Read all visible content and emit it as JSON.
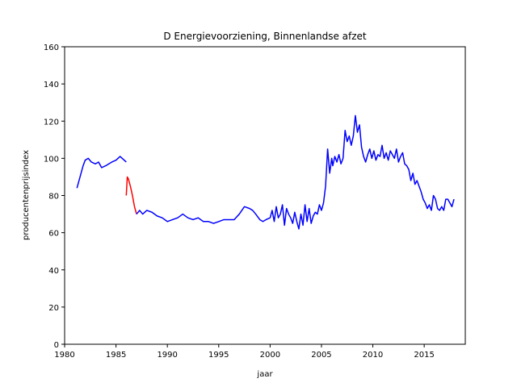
{
  "chart_data": {
    "type": "line",
    "title": "D Energievoorziening, Binnenlandse afzet",
    "xlabel": "jaar",
    "ylabel": "producentenprijsindex",
    "xlim": [
      1980,
      2019
    ],
    "ylim": [
      0,
      160
    ],
    "xticks": [
      1980,
      1985,
      1990,
      1995,
      2000,
      2005,
      2010,
      2015
    ],
    "yticks": [
      0,
      20,
      40,
      60,
      80,
      100,
      120,
      140,
      160
    ],
    "grid": false,
    "legend": "none",
    "series": [
      {
        "color": "#0000ff",
        "x": [
          1981.2,
          1981.5,
          1981.8,
          1982.0,
          1982.3,
          1982.6,
          1983.0,
          1983.3,
          1983.6,
          1984.0,
          1984.3,
          1984.6,
          1985.0,
          1985.4,
          1985.8,
          1986.0
        ],
        "y": [
          84,
          90,
          96,
          99,
          100,
          98,
          97,
          98,
          95,
          96,
          97,
          98,
          99,
          101,
          99,
          98
        ]
      },
      {
        "color": "#ff0000",
        "x": [
          1986.0,
          1986.1,
          1986.2,
          1986.4,
          1986.6,
          1986.8,
          1987.0
        ],
        "y": [
          80,
          90,
          89,
          85,
          80,
          74,
          70
        ]
      },
      {
        "color": "#0000ff",
        "x": [
          1987.0,
          1987.3,
          1987.6,
          1988.0,
          1988.5,
          1989.0,
          1989.5,
          1990.0,
          1990.5,
          1991.0,
          1991.5,
          1992.0,
          1992.5,
          1993.0,
          1993.5,
          1994.0,
          1994.5,
          1995.0,
          1995.5,
          1996.0,
          1996.5,
          1997.0,
          1997.5,
          1998.0,
          1998.3,
          1998.6,
          1999.0,
          1999.3,
          1999.6,
          2000.0,
          2000.2,
          2000.4,
          2000.6,
          2000.8,
          2001.0,
          2001.2,
          2001.4,
          2001.6,
          2001.8,
          2002.0,
          2002.2,
          2002.4,
          2002.6,
          2002.8,
          2003.0,
          2003.2,
          2003.4,
          2003.6,
          2003.8,
          2004.0,
          2004.2,
          2004.4,
          2004.6,
          2004.8,
          2005.0,
          2005.2,
          2005.4,
          2005.6,
          2005.8,
          2006.0,
          2006.1,
          2006.3,
          2006.5,
          2006.7,
          2006.9,
          2007.1,
          2007.3,
          2007.5,
          2007.7,
          2007.9,
          2008.1,
          2008.3,
          2008.5,
          2008.7,
          2008.9,
          2009.1,
          2009.3,
          2009.5,
          2009.7,
          2009.9,
          2010.1,
          2010.3,
          2010.5,
          2010.7,
          2010.9,
          2011.1,
          2011.3,
          2011.5,
          2011.7,
          2011.9,
          2012.1,
          2012.3,
          2012.5,
          2012.7,
          2012.9,
          2013.1,
          2013.3,
          2013.5,
          2013.7,
          2013.9,
          2014.1,
          2014.3,
          2014.5,
          2014.7,
          2014.9,
          2015.1,
          2015.3,
          2015.5,
          2015.7,
          2015.9,
          2016.1,
          2016.3,
          2016.5,
          2016.7,
          2016.9,
          2017.1,
          2017.3,
          2017.5,
          2017.7,
          2017.9
        ],
        "y": [
          70,
          72,
          70,
          72,
          71,
          69,
          68,
          66,
          67,
          68,
          70,
          68,
          67,
          68,
          66,
          66,
          65,
          66,
          67,
          67,
          67,
          70,
          74,
          73,
          72,
          70,
          67,
          66,
          67,
          68,
          72,
          66,
          74,
          68,
          70,
          75,
          64,
          73,
          70,
          68,
          65,
          71,
          66,
          62,
          70,
          64,
          75,
          66,
          73,
          65,
          69,
          71,
          70,
          75,
          72,
          76,
          85,
          105,
          92,
          100,
          96,
          101,
          98,
          102,
          97,
          100,
          115,
          109,
          112,
          107,
          112,
          123,
          114,
          118,
          106,
          101,
          98,
          102,
          105,
          100,
          104,
          99,
          102,
          101,
          107,
          100,
          103,
          99,
          104,
          102,
          100,
          105,
          98,
          101,
          103,
          97,
          96,
          94,
          88,
          92,
          86,
          88,
          85,
          82,
          78,
          76,
          73,
          75,
          72,
          80,
          78,
          73,
          72,
          74,
          72,
          78,
          78,
          76,
          74,
          78
        ]
      }
    ]
  }
}
